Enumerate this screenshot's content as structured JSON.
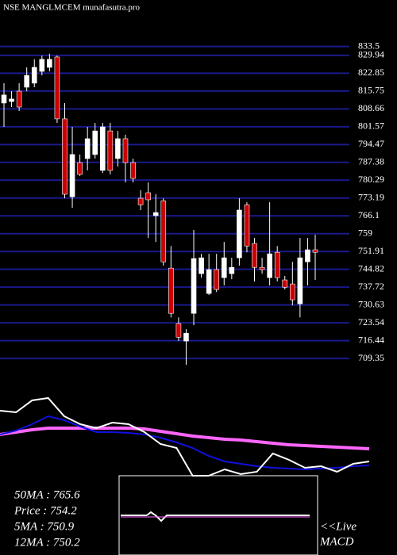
{
  "chart_data": [
    {
      "type": "candlestick",
      "title": "NSE MANGLMCEM munafasutra.pro",
      "up_color": "#ffffff",
      "down_color": "#cc0000",
      "grid": true,
      "grid_color": "#1a1a8c",
      "ylim": [
        703.7,
        852.0
      ],
      "yticks": [
        833.5,
        829.94,
        822.85,
        815.75,
        808.66,
        801.57,
        794.47,
        787.38,
        780.29,
        773.19,
        766.1,
        759,
        751.91,
        744.82,
        737.72,
        730.63,
        723.54,
        716.44,
        709.35
      ],
      "ohlc": [
        [
          811.0,
          818.9,
          801.5,
          814.2
        ],
        [
          811.6,
          815.7,
          809.4,
          812.6
        ],
        [
          815.7,
          818.9,
          807.8,
          809.4
        ],
        [
          817.3,
          825.2,
          815.7,
          822.0
        ],
        [
          818.9,
          828.4,
          817.3,
          825.2
        ],
        [
          823.6,
          829.9,
          822.0,
          828.4
        ],
        [
          825.2,
          830.6,
          823.6,
          828.4
        ],
        [
          829.3,
          829.9,
          803.1,
          804.7
        ],
        [
          804.7,
          811.0,
          773.1,
          774.7
        ],
        [
          773.7,
          801.5,
          769.3,
          790.5
        ],
        [
          787.3,
          790.5,
          782.0,
          782.6
        ],
        [
          788.9,
          801.5,
          784.2,
          796.8
        ],
        [
          790.5,
          803.1,
          788.9,
          799.9
        ],
        [
          784.2,
          803.1,
          783.2,
          801.5
        ],
        [
          799.9,
          803.1,
          782.6,
          784.2
        ],
        [
          788.9,
          799.9,
          785.7,
          796.8
        ],
        [
          796.8,
          798.4,
          779.4,
          787.3
        ],
        [
          787.3,
          788.9,
          779.4,
          781.0
        ],
        [
          773.1,
          776.3,
          768.4,
          770.5
        ],
        [
          775.3,
          779.4,
          757.3,
          772.5
        ],
        [
          766.2,
          774.7,
          755.7,
          767.4
        ],
        [
          772.1,
          773.1,
          746.3,
          747.8
        ],
        [
          745.3,
          754.1,
          725.7,
          727.3
        ],
        [
          723.2,
          725.7,
          716.3,
          717.8
        ],
        [
          716.3,
          721.0,
          706.8,
          719.4
        ],
        [
          727.3,
          760.5,
          722.6,
          749.1
        ],
        [
          743.1,
          751.0,
          741.5,
          749.4
        ],
        [
          735.2,
          751.0,
          734.6,
          744.7
        ],
        [
          744.7,
          751.0,
          735.8,
          736.8
        ],
        [
          741.5,
          755.7,
          738.4,
          749.4
        ],
        [
          743.1,
          749.4,
          740.9,
          745.6
        ],
        [
          749.4,
          773.1,
          746.3,
          768.4
        ],
        [
          770.5,
          771.5,
          751.6,
          754.1
        ],
        [
          755.1,
          757.3,
          740.0,
          745.6
        ],
        [
          745.6,
          749.4,
          743.1,
          744.7
        ],
        [
          741.5,
          771.5,
          738.4,
          751.0
        ],
        [
          751.6,
          754.1,
          740.0,
          741.5
        ],
        [
          740.6,
          742.2,
          736.8,
          737.7
        ],
        [
          739.0,
          747.8,
          730.5,
          732.7
        ],
        [
          731.1,
          757.3,
          725.7,
          749.4
        ],
        [
          747.8,
          757.3,
          738.4,
          752.6
        ],
        [
          752.6,
          758.6,
          740.6,
          751.6
        ]
      ]
    },
    {
      "type": "line",
      "ylim": [
        0,
        120
      ],
      "categories": [
        null,
        null,
        null,
        null,
        null,
        null,
        null,
        null,
        null,
        null,
        null,
        null,
        null,
        null,
        null,
        null,
        null,
        null,
        null,
        null,
        null,
        null,
        null,
        null
      ],
      "series": [
        {
          "color": "#ff66ff",
          "values": [
            62,
            65,
            68,
            70,
            70,
            70,
            70,
            70,
            70,
            69,
            66,
            63,
            60,
            58,
            56,
            55,
            53,
            51,
            49,
            48,
            47,
            46,
            45,
            44
          ]
        },
        {
          "color": "#1010dd",
          "values": [
            62,
            67,
            75,
            85,
            80,
            72,
            65,
            65,
            64,
            62,
            58,
            52,
            45,
            35,
            28,
            25,
            22,
            20,
            19,
            18,
            19,
            20,
            22,
            23
          ]
        },
        {
          "color": "#ffffff",
          "values": [
            92,
            90,
            105,
            108,
            85,
            75,
            70,
            77,
            75,
            65,
            50,
            45,
            10,
            10,
            18,
            12,
            15,
            38,
            30,
            20,
            22,
            15,
            25,
            28
          ]
        }
      ],
      "indicators": [
        "50MA : 765.6",
        "Price  : 754.2",
        "5MA : 750.9",
        "12MA : 750.2"
      ],
      "live_label": "<<Live",
      "macd_label": "MACD"
    }
  ]
}
